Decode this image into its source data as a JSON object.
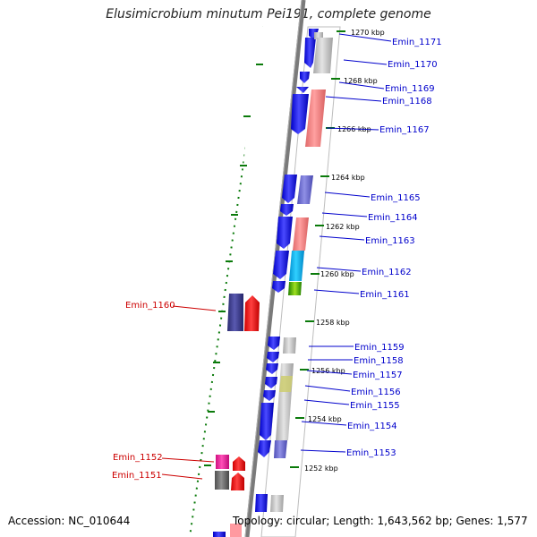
{
  "title": "Elusimicrobium minutum Pei191, complete genome",
  "footer": {
    "accession": "Accession: NC_010644",
    "summary": "Topology: circular; Length: 1,643,562 bp; Genes: 1,577"
  },
  "colors": {
    "cds_forward": "#1010ee",
    "cds_reverse": "#ee1111",
    "track_box": "#888888",
    "right_labels": "#0000cc",
    "left_labels": "#cc0000",
    "tick_green": "#0a7a0a",
    "backbone": "#7a7a7a"
  },
  "kbp_markers": [
    "1270 kbp",
    "1268 kbp",
    "1266 kbp",
    "1264 kbp",
    "1262 kbp",
    "1260 kbp",
    "1258 kbp",
    "1256 kbp",
    "1254 kbp",
    "1252 kbp"
  ],
  "right_genes": [
    "Emin_1171",
    "Emin_1170",
    "Emin_1169",
    "Emin_1168",
    "Emin_1167",
    "Emin_1165",
    "Emin_1164",
    "Emin_1163",
    "Emin_1162",
    "Emin_1161",
    "Emin_1159",
    "Emin_1158",
    "Emin_1157",
    "Emin_1156",
    "Emin_1155",
    "Emin_1154",
    "Emin_1153"
  ],
  "left_genes": [
    "Emin_1160",
    "Emin_1152",
    "Emin_1151"
  ]
}
